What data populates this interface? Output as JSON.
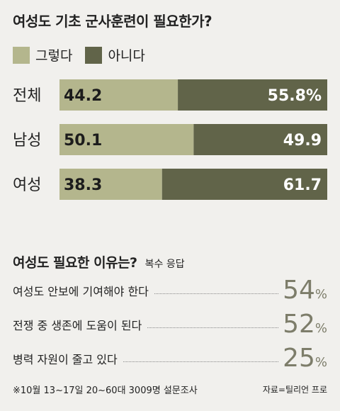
{
  "title": "여성도 기초 군사훈련이 필요한가?",
  "colors": {
    "yes": "#b4b68d",
    "no": "#616449",
    "value_text": "#ffffff",
    "value_text_dark": "#1c1c1c",
    "accent": "#7d7d6a"
  },
  "chart_data": [
    {
      "type": "bar",
      "stacked": true,
      "orientation": "horizontal",
      "categories": [
        "전체",
        "남성",
        "여성"
      ],
      "series": [
        {
          "name": "그렇다",
          "values": [
            44.2,
            50.1,
            38.3
          ]
        },
        {
          "name": "아니다",
          "values": [
            55.8,
            49.9,
            61.7
          ]
        }
      ],
      "value_labels": [
        [
          "44.2",
          "50.1",
          "38.3"
        ],
        [
          "55.8%",
          "49.9",
          "61.7"
        ]
      ],
      "title": "여성도 기초 군사훈련이 필요한가?",
      "legend": "top-left",
      "xlim": [
        0,
        100
      ],
      "grid": false
    },
    {
      "type": "table",
      "title": "여성도 필요한 이유는?",
      "subtitle": "복수 응답",
      "rows": [
        {
          "label": "여성도 안보에 기여해야 한다",
          "value": 54
        },
        {
          "label": "전쟁 중 생존에 도움이 된다",
          "value": 52
        },
        {
          "label": "병력 자원이 줄고 있다",
          "value": 25
        }
      ]
    }
  ],
  "reasons_title": "여성도 필요한 이유는?",
  "reasons_sub": "복수 응답",
  "reasons": [
    {
      "label": "여성도 안보에 기여해야 한다",
      "value": "54",
      "unit": "%"
    },
    {
      "label": "전쟁 중 생존에 도움이 된다",
      "value": "52",
      "unit": "%"
    },
    {
      "label": "병력 자원이 줄고 있다",
      "value": "25",
      "unit": "%"
    }
  ],
  "footnote": "※10월 13~17일 20~60대 3009명 설문조사",
  "source": "자료=틸리언 프로"
}
